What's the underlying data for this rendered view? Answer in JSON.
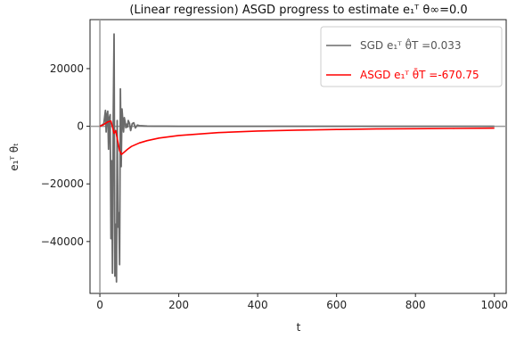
{
  "chart_data": {
    "type": "line",
    "title": "(Linear regression) ASGD progress to estimate e₁ᵀ θ∞=0.0",
    "xlabel": "t",
    "ylabel": "e₁ᵀ θₜ",
    "xlim": [
      -25,
      1030
    ],
    "ylim": [
      -58000,
      37000
    ],
    "xticks": [
      0,
      200,
      400,
      600,
      800,
      1000
    ],
    "xtick_labels": [
      "0",
      "200",
      "400",
      "600",
      "800",
      "1000"
    ],
    "yticks": [
      20000,
      0,
      -20000,
      -40000
    ],
    "ytick_labels": [
      "20000",
      "0",
      "−20000",
      "−40000"
    ],
    "grid": false,
    "legend_position": "top-right",
    "reference_lines": {
      "horizontal_y": 0,
      "vertical_x": 0
    },
    "series": [
      {
        "name": "SGD e₁ᵀ θ̂T =0.033",
        "color": "#6b6b6b",
        "x": [
          0,
          5,
          10,
          14,
          16,
          18,
          20,
          22,
          24,
          26,
          28,
          30,
          32,
          34,
          36,
          38,
          40,
          42,
          44,
          46,
          48,
          50,
          52,
          54,
          56,
          58,
          60,
          62,
          64,
          66,
          68,
          70,
          72,
          75,
          78,
          82,
          86,
          90,
          95,
          100,
          110,
          120,
          140,
          170,
          200,
          300,
          400,
          500,
          600,
          700,
          800,
          900,
          1000
        ],
        "y": [
          0,
          400,
          900,
          5500,
          -2000,
          4000,
          5200,
          -8000,
          3000,
          4000,
          -39000,
          -12000,
          -51000,
          4000,
          32000,
          -52000,
          -34000,
          -54000,
          2000,
          -35000,
          -30000,
          -48000,
          13000,
          -14000,
          6000,
          2500,
          -2000,
          3000,
          1500,
          -500,
          700,
          -300,
          2000,
          1000,
          -1500,
          900,
          1200,
          -600,
          400,
          200,
          100,
          50,
          20,
          10,
          5,
          1,
          0.5,
          0.2,
          0.1,
          0.05,
          0.04,
          0.035,
          0.033
        ]
      },
      {
        "name": "ASGD e₁ᵀ θ̄T =-670.75",
        "color": "#ff0000",
        "x": [
          0,
          10,
          20,
          28,
          32,
          36,
          40,
          45,
          50,
          55,
          60,
          70,
          80,
          100,
          120,
          150,
          200,
          300,
          400,
          500,
          600,
          700,
          800,
          900,
          1000
        ],
        "y": [
          0,
          600,
          1500,
          1800,
          -200,
          -2500,
          -1500,
          -5000,
          -8500,
          -9800,
          -9200,
          -8000,
          -7000,
          -5800,
          -5000,
          -4100,
          -3200,
          -2200,
          -1650,
          -1330,
          -1110,
          -950,
          -830,
          -740,
          -670.75
        ]
      }
    ]
  }
}
